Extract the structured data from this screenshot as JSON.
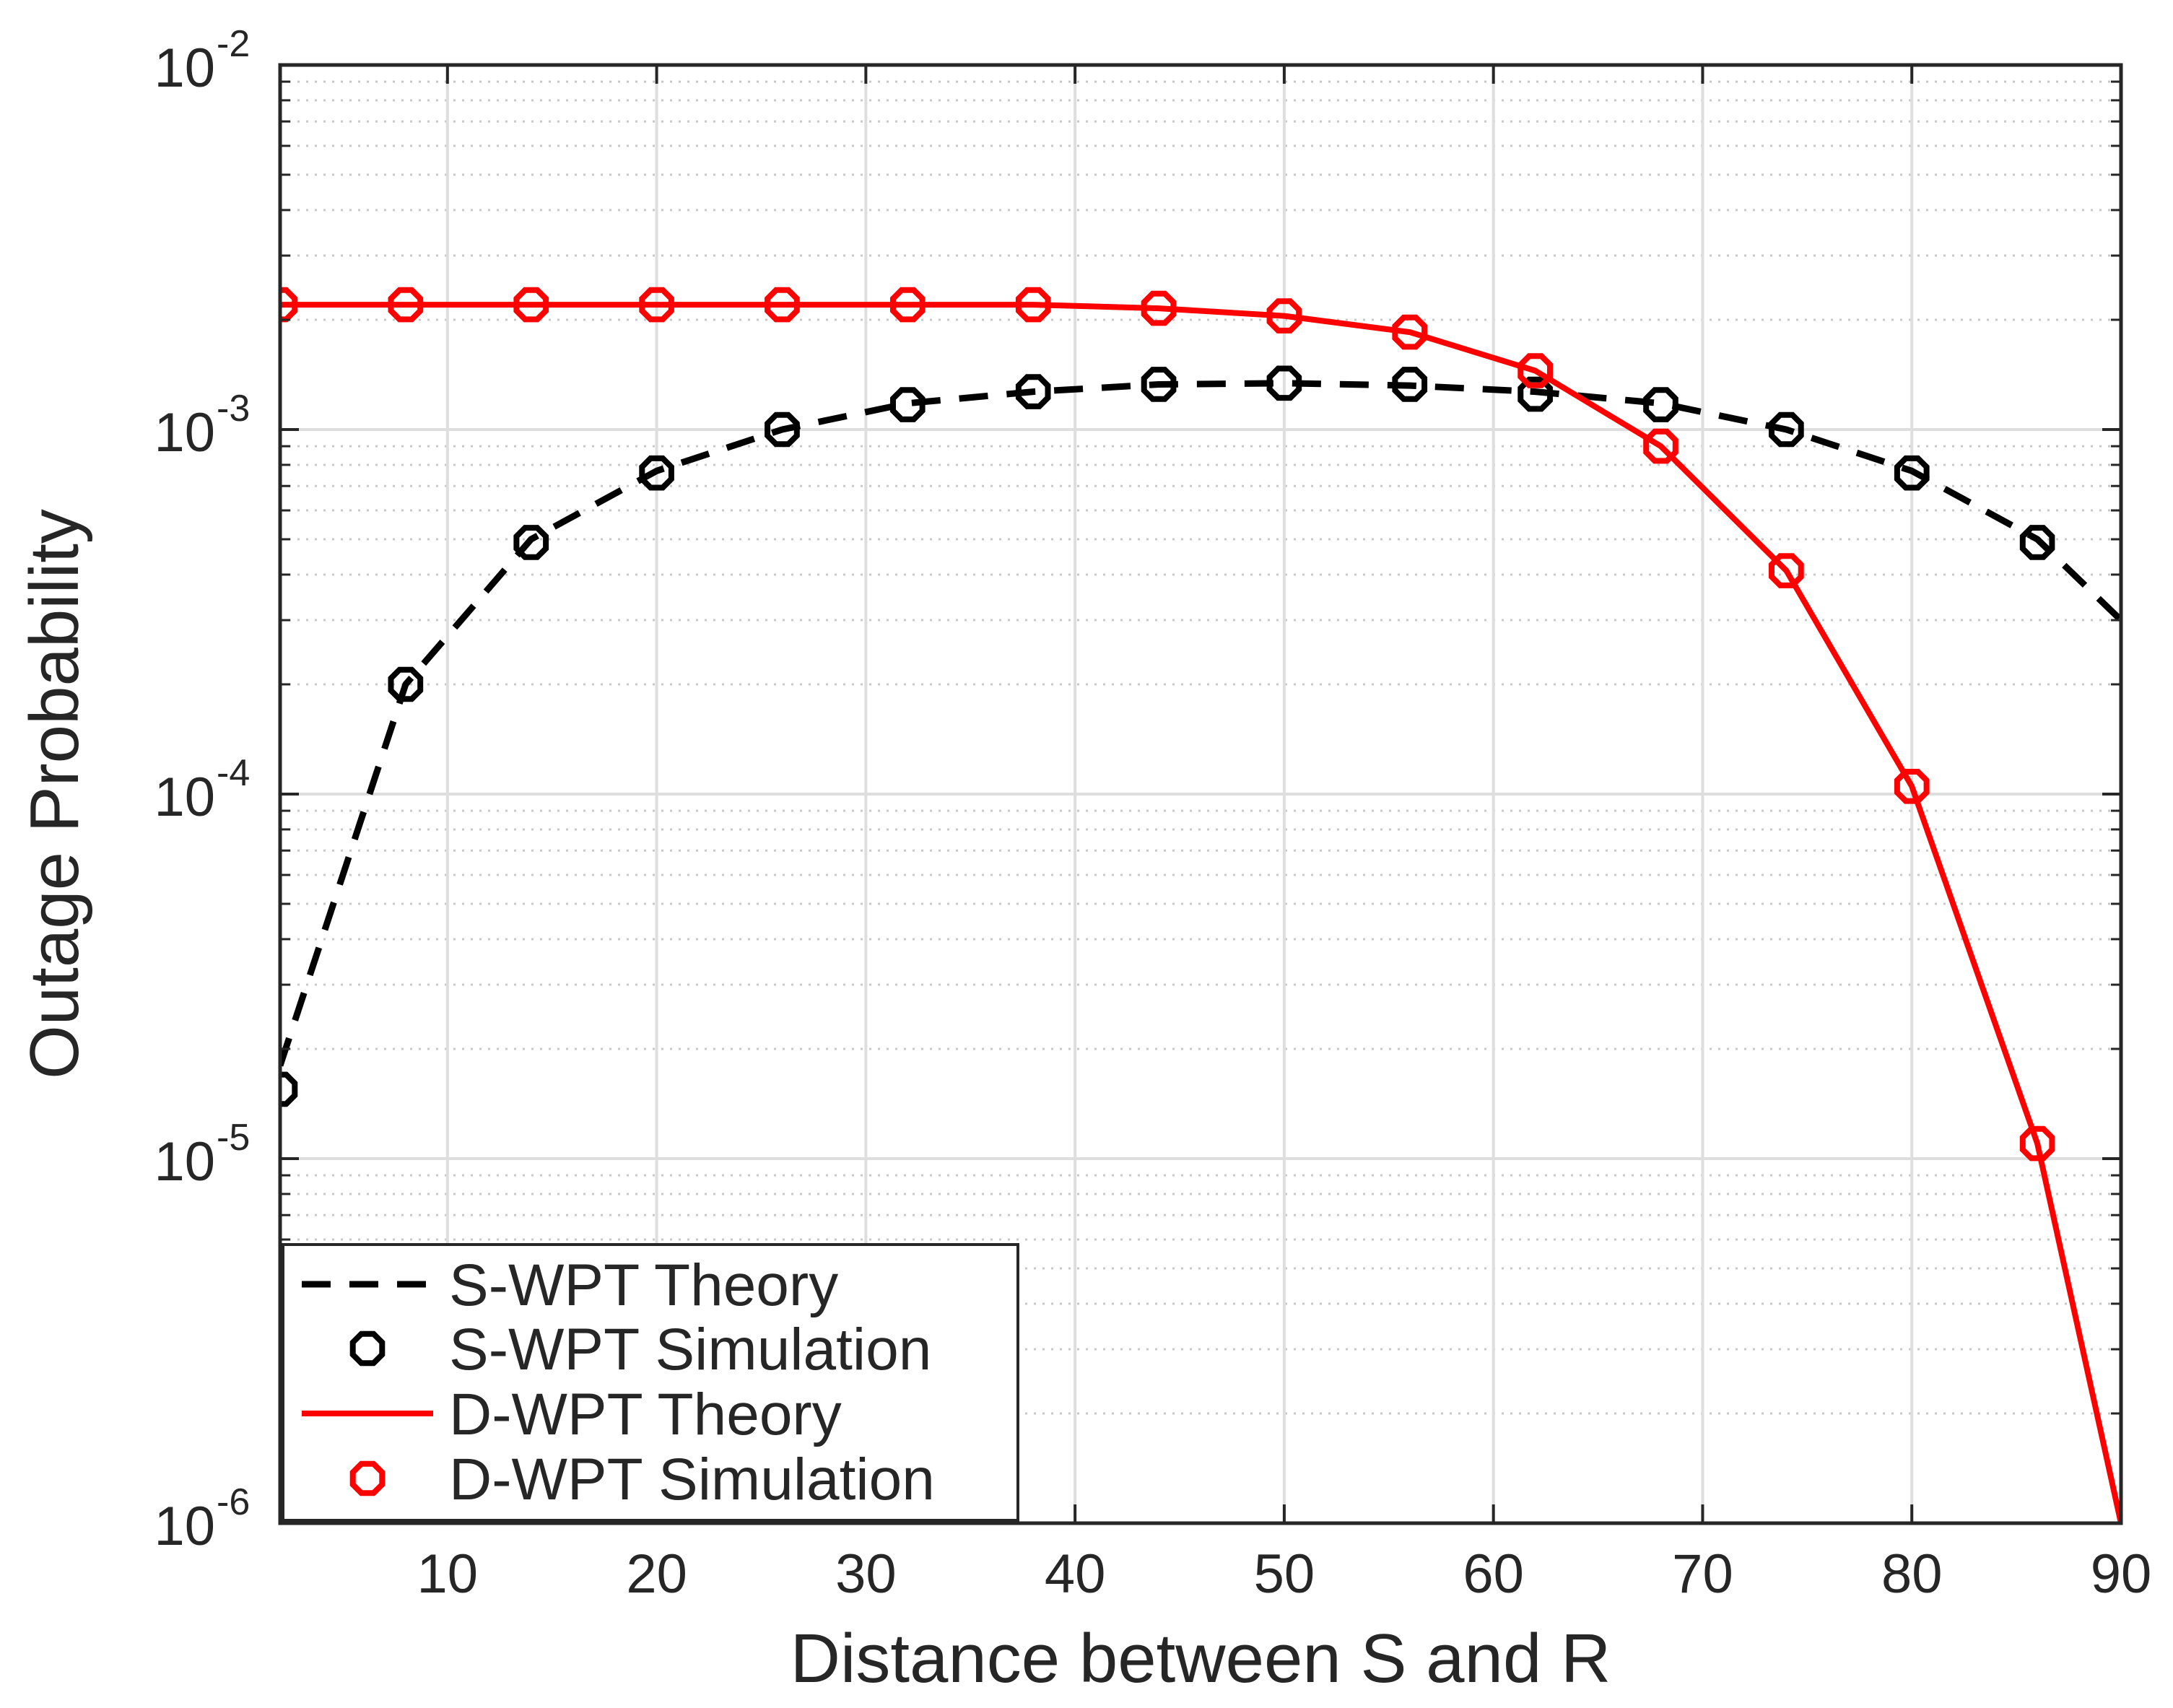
{
  "chart_data": {
    "type": "line",
    "title": "",
    "xlabel": "Distance between S and R",
    "ylabel": "Outage Probability",
    "xlim": [
      2,
      90
    ],
    "ylim": [
      1e-06,
      0.01
    ],
    "yscale": "log",
    "grid": true,
    "x_ticks": [
      10,
      20,
      30,
      40,
      50,
      60,
      70,
      80,
      90
    ],
    "y_ticks": [
      {
        "base": "10",
        "exp": "-6",
        "value": 1e-06
      },
      {
        "base": "10",
        "exp": "-5",
        "value": 1e-05
      },
      {
        "base": "10",
        "exp": "-4",
        "value": 0.0001
      },
      {
        "base": "10",
        "exp": "-3",
        "value": 0.001
      },
      {
        "base": "10",
        "exp": "-2",
        "value": 0.01
      }
    ],
    "legend_position": "bottom-left",
    "series": [
      {
        "name": "S-WPT Theory",
        "style": "dashed",
        "color": "#000000",
        "x": [
          2,
          8,
          14,
          20,
          26,
          32,
          38,
          44,
          50,
          56,
          62,
          68,
          74,
          80,
          86,
          90
        ],
        "values": [
          1.8e-05,
          0.0002,
          0.0005,
          0.00077,
          0.001,
          0.00118,
          0.00127,
          0.00133,
          0.00134,
          0.00132,
          0.00127,
          0.00118,
          0.001,
          0.00077,
          0.0005,
          0.0003
        ]
      },
      {
        "name": "S-WPT Simulation",
        "style": "marker-circle",
        "color": "#000000",
        "x": [
          2,
          8,
          14,
          20,
          26,
          32,
          38,
          44,
          50,
          56,
          62,
          68,
          74,
          80,
          86
        ],
        "values": [
          1.55e-05,
          0.0002,
          0.00049,
          0.00076,
          0.001,
          0.00117,
          0.00127,
          0.00133,
          0.00134,
          0.00133,
          0.00125,
          0.00117,
          0.001,
          0.00076,
          0.00049
        ]
      },
      {
        "name": "D-WPT Theory",
        "style": "solid",
        "color": "#ff0000",
        "x": [
          2,
          8,
          14,
          20,
          26,
          32,
          38,
          44,
          50,
          56,
          62,
          68,
          74,
          80,
          86,
          90
        ],
        "values": [
          0.0022,
          0.0022,
          0.0022,
          0.0022,
          0.0022,
          0.0022,
          0.0022,
          0.00215,
          0.00205,
          0.00185,
          0.00145,
          0.0009,
          0.00041,
          0.000105,
          1.1e-05,
          1e-06
        ]
      },
      {
        "name": "D-WPT Simulation",
        "style": "marker-circle",
        "color": "#ff0000",
        "x": [
          2,
          8,
          14,
          20,
          26,
          32,
          38,
          44,
          50,
          56,
          62,
          68,
          74,
          80,
          86
        ],
        "values": [
          0.0022,
          0.0022,
          0.0022,
          0.0022,
          0.0022,
          0.0022,
          0.0022,
          0.00215,
          0.00205,
          0.00185,
          0.00145,
          0.0009,
          0.00041,
          0.000105,
          1.1e-05
        ]
      }
    ]
  }
}
